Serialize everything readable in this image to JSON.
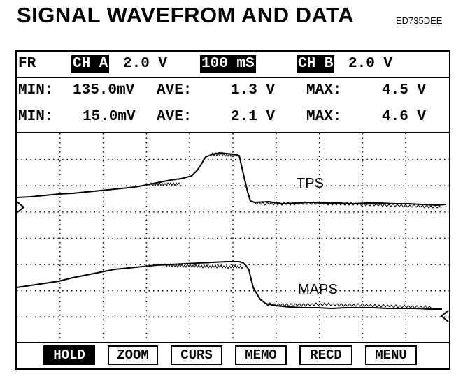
{
  "header": {
    "title": "SIGNAL WAVEFROM AND DATA",
    "figure_code": "ED735DEE"
  },
  "status_bar": {
    "mode": "FR",
    "ch_a_label": "CH A",
    "ch_a_scale": "2.0 V",
    "timebase": "100 mS",
    "ch_b_label": "CH B",
    "ch_b_scale": "2.0 V"
  },
  "readings": [
    {
      "min_label": "MIN:",
      "min": "135.0mV",
      "ave_label": "AVE:",
      "ave": "1.3 V",
      "max_label": "MAX:",
      "max": "4.5 V"
    },
    {
      "min_label": "MIN:",
      "min": "15.0mV",
      "ave_label": "AVE:",
      "ave": "2.1 V",
      "max_label": "MAX:",
      "max": "4.6 V"
    }
  ],
  "traces": {
    "tps_label": "TPS",
    "maps_label": "MAPS"
  },
  "softkeys": [
    "HOLD",
    "ZOOM",
    "CURS",
    "MEMO",
    "RECD",
    "MENU"
  ],
  "active_softkey": "HOLD"
}
